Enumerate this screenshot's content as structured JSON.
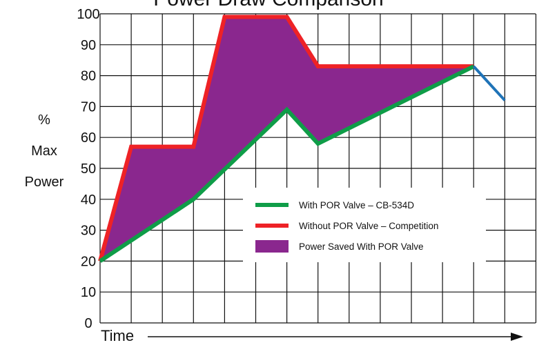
{
  "chart_data": {
    "type": "area",
    "title": "Power Draw Comparison",
    "ylabel_lines": [
      "%",
      "Max",
      "Power"
    ],
    "xlabel": "Time",
    "ylim": [
      0,
      100
    ],
    "yticks": [
      0,
      10,
      20,
      30,
      40,
      50,
      60,
      70,
      80,
      90,
      100
    ],
    "x": [
      0,
      1,
      2,
      3,
      4,
      5,
      6,
      7,
      8,
      9,
      10,
      11,
      12,
      13
    ],
    "grid": true,
    "legend_placement": "center-right",
    "series": [
      {
        "name": "With POR Valve – CB-534D",
        "color": "#0f9d48",
        "x": [
          0,
          3,
          6,
          7,
          12
        ],
        "values": [
          20,
          40,
          69,
          58,
          83
        ]
      },
      {
        "name": "Without POR Valve – Competition",
        "color": "#ee2226",
        "x": [
          0,
          1,
          3,
          4,
          6,
          7,
          12
        ],
        "values": [
          20,
          57,
          57,
          99,
          99,
          83,
          83
        ]
      },
      {
        "name": "Power Saved With POR Valve",
        "color": "#8a278e",
        "type": "area-between"
      },
      {
        "color": "#1f73b7",
        "x": [
          12,
          13
        ],
        "values": [
          83,
          72
        ]
      }
    ]
  }
}
